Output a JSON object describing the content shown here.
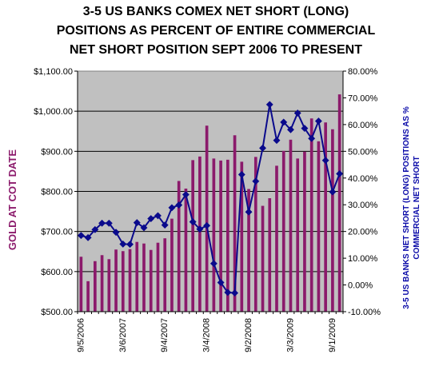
{
  "chart_data": {
    "type": "bar+line",
    "title": [
      "3-5 US BANKS COMEX NET SHORT (LONG)",
      "POSITIONS AS PERCENT OF ENTIRE COMMERCIAL",
      "NET SHORT POSITION SEPT 2006 TO PRESENT"
    ],
    "ylabel_left": "GOLD AT COT DATE",
    "ylabel_right": [
      "3-5 US BANKS NET SHORT (LONG) POSITIONS AS %",
      "COMMERCIAL NET SHORT"
    ],
    "left_axis": {
      "min": 500,
      "max": 1100,
      "step": 100,
      "tick_labels": [
        "$500.00",
        "$600.00",
        "$700.00",
        "$800.00",
        "$900.00",
        "$1,000.00",
        "$1,100.00"
      ]
    },
    "right_axis": {
      "min": -10,
      "max": 80,
      "step": 10,
      "tick_labels": [
        "-10.00%",
        "0.00%",
        "10.00%",
        "20.00%",
        "30.00%",
        "40.00%",
        "50.00%",
        "60.00%",
        "70.00%",
        "80.00%"
      ]
    },
    "x_tick_labels": [
      {
        "index": 0,
        "label": "9/5/2006"
      },
      {
        "index": 6,
        "label": "3/6/2007"
      },
      {
        "index": 12,
        "label": "9/4/2007"
      },
      {
        "index": 18,
        "label": "3/4/2008"
      },
      {
        "index": 24,
        "label": "9/2/2008"
      },
      {
        "index": 30,
        "label": "3/3/2009"
      },
      {
        "index": 36,
        "label": "9/1/2009"
      }
    ],
    "gold_bars": [
      637,
      576,
      626,
      641,
      631,
      655,
      651,
      656,
      674,
      670,
      654,
      672,
      683,
      732,
      826,
      807,
      878,
      887,
      964,
      882,
      877,
      879,
      940,
      874,
      806,
      886,
      764,
      783,
      864,
      901,
      929,
      882,
      899,
      982,
      925,
      972,
      955,
      1042
    ],
    "pct_series": [
      18.5,
      17.7,
      20.7,
      23.1,
      23.1,
      19.7,
      15.3,
      15.2,
      23.3,
      21.4,
      24.8,
      25.9,
      22.4,
      28.9,
      29.9,
      33.8,
      23.6,
      20.9,
      22.2,
      8.0,
      0.9,
      -2.8,
      -3.0,
      41.3,
      27.3,
      38.8,
      51.2,
      67.5,
      54.1,
      60.9,
      58.1,
      64.3,
      58.6,
      54.8,
      61.3,
      46.6,
      34.8,
      41.6
    ],
    "bar_color": "#8b1a6b",
    "line_color": "#0a0a8c",
    "plot_background": "#c0c0c0",
    "grid": true,
    "left_label_color": "#8b1a6b",
    "right_label_color": "#0a0aa8"
  }
}
